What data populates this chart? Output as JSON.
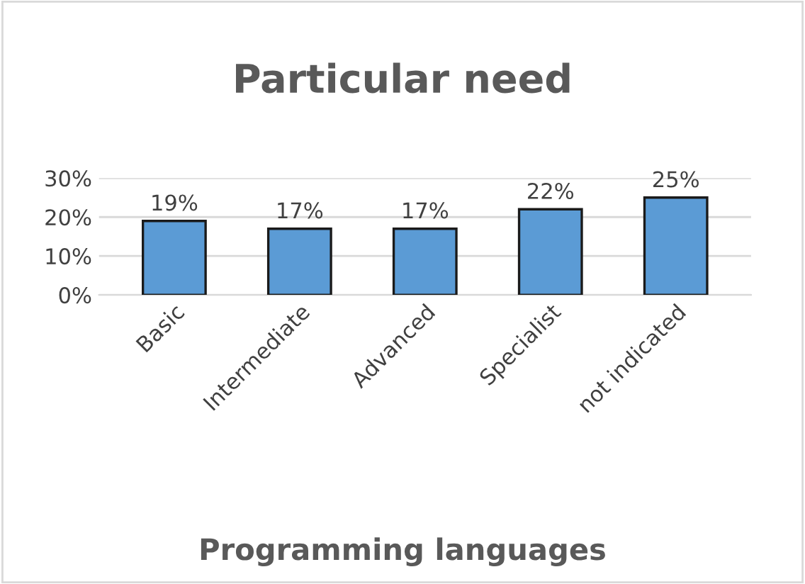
{
  "chart_data": {
    "type": "bar",
    "title": "Particular need",
    "xlabel": "Programming languages",
    "categories": [
      "Basic",
      "Intermediate",
      "Advanced",
      "Specialist",
      "not indicated"
    ],
    "values": [
      19,
      17,
      17,
      22,
      25
    ],
    "value_labels": [
      "19%",
      "17%",
      "17%",
      "22%",
      "25%"
    ],
    "color": "#5b9bd5",
    "ylim": [
      0,
      30
    ],
    "yticks": [
      {
        "value": 0,
        "label": "0%"
      },
      {
        "value": 10,
        "label": "10%"
      },
      {
        "value": 20,
        "label": "20%"
      },
      {
        "value": 30,
        "label": "30%"
      }
    ],
    "grid": "y",
    "legend": false
  }
}
